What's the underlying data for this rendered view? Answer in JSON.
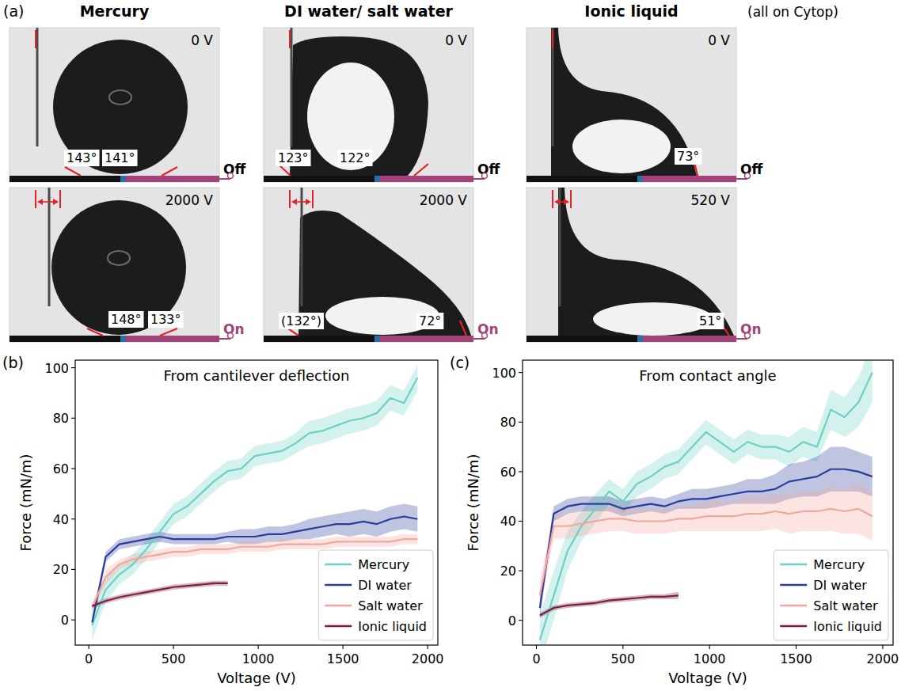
{
  "photo_panel": {
    "panel_label": "(a)",
    "note": "(all on Cytop)",
    "columns": [
      {
        "title": "Mercury",
        "rows": [
          {
            "voltage": "0 V",
            "state": "Off",
            "angles": [
              "143°",
              "141°"
            ]
          },
          {
            "voltage": "2000 V",
            "state": "On",
            "angles": [
              "148°",
              "133°"
            ]
          }
        ]
      },
      {
        "title": "DI water/ salt water",
        "rows": [
          {
            "voltage": "0 V",
            "state": "Off",
            "angles": [
              "123°",
              "122°"
            ]
          },
          {
            "voltage": "2000 V",
            "state": "On",
            "angles": [
              "(132°)",
              "72°"
            ]
          }
        ]
      },
      {
        "title": "Ionic  liquid",
        "rows": [
          {
            "voltage": "0 V",
            "state": "Off",
            "angles": [
              "73°"
            ]
          },
          {
            "voltage": "520 V",
            "state": "On",
            "angles": [
              "51°"
            ]
          }
        ]
      }
    ]
  },
  "chart_data": [
    {
      "type": "line",
      "panel_label": "(b)",
      "title": "From cantilever deflection",
      "x_label": "Voltage (V)",
      "y_label": "Force (mN/m)",
      "x": [
        20,
        100,
        180,
        260,
        340,
        420,
        500,
        580,
        660,
        740,
        820,
        900,
        980,
        1060,
        1140,
        1220,
        1300,
        1380,
        1460,
        1540,
        1620,
        1700,
        1780,
        1860,
        1940
      ],
      "xlim": [
        -80,
        2060
      ],
      "xticks": [
        0,
        500,
        1000,
        1500,
        2000
      ],
      "ylim": [
        -10,
        103
      ],
      "yticks": [
        0,
        20,
        40,
        60,
        80,
        100
      ],
      "grid": false,
      "legend": "lower right",
      "series": [
        {
          "name": "Mercury",
          "color": "#6ecfc4",
          "values": [
            -2,
            12,
            18,
            22,
            28,
            35,
            42,
            45,
            50,
            55,
            59,
            60,
            65,
            66,
            67,
            70,
            74,
            75,
            77,
            79,
            80,
            82,
            88,
            86,
            96
          ],
          "errors": [
            6,
            5,
            4,
            4,
            4,
            4,
            4,
            4,
            4,
            4,
            4,
            4,
            4,
            4,
            4,
            4,
            5,
            5,
            5,
            5,
            5,
            5,
            5,
            5,
            5
          ]
        },
        {
          "name": "DI water",
          "color": "#2a3d9c",
          "values": [
            -1,
            25,
            30,
            31,
            32,
            33,
            32,
            32,
            32,
            32,
            33,
            33,
            33,
            34,
            34,
            35,
            36,
            37,
            38,
            38,
            39,
            38,
            40,
            41,
            40
          ],
          "errors": [
            2,
            2,
            2,
            2,
            2,
            2,
            2,
            2,
            2,
            2,
            2,
            3,
            3,
            3,
            3,
            3,
            4,
            4,
            4,
            5,
            5,
            5,
            5,
            5,
            5
          ]
        },
        {
          "name": "Salt water",
          "color": "#f3a69d",
          "values": [
            5,
            17,
            22,
            24,
            25,
            26,
            27,
            27,
            28,
            28,
            28,
            29,
            29,
            29,
            30,
            30,
            30,
            30,
            31,
            31,
            31,
            31,
            31,
            32,
            32
          ],
          "errors": [
            2,
            3,
            2,
            2,
            2,
            2,
            2,
            2,
            2,
            2,
            2,
            2,
            2,
            2,
            2,
            2,
            2,
            2,
            2,
            2,
            2,
            2,
            2,
            2,
            2
          ]
        },
        {
          "name": "Ionic  liquid",
          "color": "#7b1f3f",
          "values": [
            5.5,
            7.5,
            9,
            10,
            11,
            12,
            13,
            13.5,
            14,
            14.5,
            14.5,
            null,
            null,
            null,
            null,
            null,
            null,
            null,
            null,
            null,
            null,
            null,
            null,
            null,
            null
          ],
          "errors": [
            1,
            1,
            1,
            1,
            1,
            1,
            1,
            1,
            1,
            1,
            1,
            null,
            null,
            null,
            null,
            null,
            null,
            null,
            null,
            null,
            null,
            null,
            null,
            null,
            null
          ]
        }
      ]
    },
    {
      "type": "line",
      "panel_label": "(c)",
      "title": "From contact angle",
      "x_label": "Voltage (V)",
      "y_label": "Force (mN/m)",
      "x": [
        20,
        100,
        180,
        260,
        340,
        420,
        500,
        580,
        660,
        740,
        820,
        900,
        980,
        1060,
        1140,
        1220,
        1300,
        1380,
        1460,
        1540,
        1620,
        1700,
        1780,
        1860,
        1940
      ],
      "xlim": [
        -80,
        2060
      ],
      "xticks": [
        0,
        500,
        1000,
        1500,
        2000
      ],
      "ylim": [
        -10,
        105
      ],
      "yticks": [
        0,
        20,
        40,
        60,
        80,
        100
      ],
      "grid": false,
      "legend": "lower right",
      "series": [
        {
          "name": "Mercury",
          "color": "#6ecfc4",
          "values": [
            -8,
            10,
            28,
            38,
            45,
            52,
            48,
            55,
            58,
            62,
            64,
            70,
            76,
            72,
            68,
            72,
            70,
            70,
            68,
            72,
            70,
            85,
            82,
            88,
            100
          ],
          "errors": [
            10,
            10,
            8,
            6,
            6,
            5,
            5,
            5,
            5,
            5,
            5,
            5,
            5,
            5,
            5,
            5,
            5,
            5,
            6,
            6,
            6,
            8,
            8,
            10,
            12
          ]
        },
        {
          "name": "DI water",
          "color": "#2a3d9c",
          "values": [
            5,
            43,
            46,
            47,
            47,
            47,
            45,
            46,
            47,
            46,
            48,
            49,
            49,
            50,
            51,
            52,
            52,
            53,
            56,
            57,
            58,
            61,
            61,
            60,
            58
          ],
          "errors": [
            4,
            3,
            3,
            3,
            3,
            3,
            3,
            3,
            3,
            3,
            3,
            4,
            4,
            4,
            4,
            5,
            5,
            6,
            7,
            7,
            8,
            9,
            9,
            8,
            8
          ]
        },
        {
          "name": "Salt water",
          "color": "#f3a69d",
          "values": [
            10,
            38,
            38,
            39,
            40,
            41,
            41,
            40,
            40,
            40,
            41,
            41,
            42,
            42,
            42,
            43,
            43,
            44,
            43,
            44,
            44,
            45,
            44,
            45,
            42
          ],
          "errors": [
            6,
            5,
            5,
            5,
            5,
            5,
            5,
            5,
            5,
            5,
            5,
            5,
            6,
            6,
            6,
            7,
            7,
            7,
            8,
            8,
            8,
            9,
            9,
            10,
            10
          ]
        },
        {
          "name": "Ionic  liquid",
          "color": "#7b1f3f",
          "values": [
            2,
            5,
            6,
            6.5,
            7,
            8,
            8.5,
            9,
            9.5,
            9.5,
            10,
            null,
            null,
            null,
            null,
            null,
            null,
            null,
            null,
            null,
            null,
            null,
            null,
            null,
            null
          ],
          "errors": [
            1,
            1,
            1,
            1,
            1,
            1,
            1,
            1,
            1,
            1,
            1.5,
            null,
            null,
            null,
            null,
            null,
            null,
            null,
            null,
            null,
            null,
            null,
            null,
            null,
            null
          ]
        }
      ]
    }
  ]
}
